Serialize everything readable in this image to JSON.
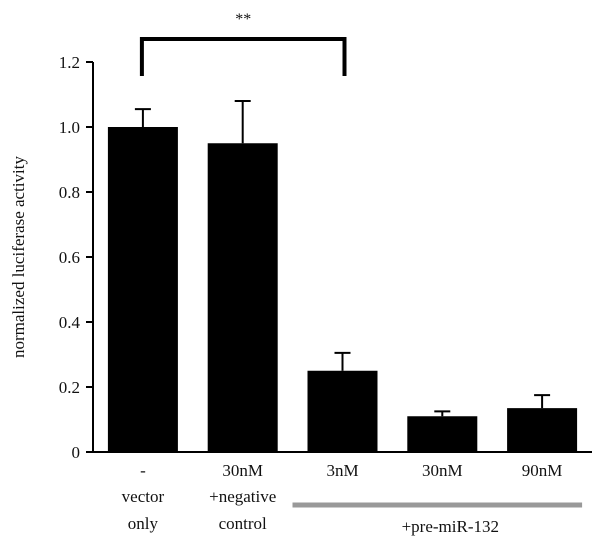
{
  "chart_data": {
    "type": "bar",
    "ylabel": "normalized luciferase activity",
    "xlabel": "",
    "ylim": [
      0,
      1.2
    ],
    "yticks": [
      "0",
      "0.2",
      "0.4",
      "0.6",
      "0.8",
      "1.0",
      "1.2"
    ],
    "grid": false,
    "categories": [
      {
        "line1": "-",
        "line2": "vector",
        "line3": "only"
      },
      {
        "line1": "30nM",
        "line2": "+negative",
        "line3": "control"
      },
      {
        "line1": "3nM",
        "line2": "",
        "line3": ""
      },
      {
        "line1": "30nM",
        "line2": "",
        "line3": ""
      },
      {
        "line1": "90nM",
        "line2": "",
        "line3": ""
      }
    ],
    "values": [
      1.0,
      0.95,
      0.25,
      0.11,
      0.135
    ],
    "errors": [
      0.055,
      0.13,
      0.055,
      0.015,
      0.04
    ],
    "bar_color": "#000000",
    "group_label": "+pre-miR-132",
    "group_bar_color": "#999999",
    "significance": {
      "label": "**",
      "from": 0,
      "to": 2
    }
  }
}
